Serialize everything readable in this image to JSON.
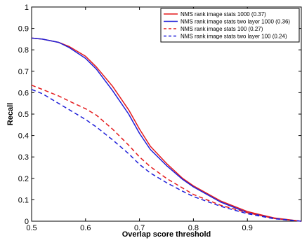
{
  "chart_data": {
    "type": "line",
    "title": "",
    "xlabel": "Overlap score threshold",
    "ylabel": "Recall",
    "xlim": [
      0.5,
      1.0
    ],
    "ylim": [
      0,
      1
    ],
    "x_ticks": [
      "0.5",
      "0.6",
      "0.7",
      "0.8",
      "0.9"
    ],
    "y_ticks": [
      "0",
      "0.1",
      "0.2",
      "0.3",
      "0.4",
      "0.5",
      "0.6",
      "0.7",
      "0.8",
      "0.9",
      "1"
    ],
    "grid": false,
    "legend_position": "top-right",
    "x": [
      0.5,
      0.52,
      0.55,
      0.57,
      0.6,
      0.62,
      0.65,
      0.68,
      0.7,
      0.72,
      0.75,
      0.78,
      0.8,
      0.85,
      0.9,
      0.95,
      1.0
    ],
    "series": [
      {
        "name": "NMS rank image stats 1000 (0.37)",
        "color": "#e41a1c",
        "dash": "solid",
        "values": [
          0.855,
          0.85,
          0.835,
          0.815,
          0.77,
          0.72,
          0.63,
          0.52,
          0.43,
          0.35,
          0.27,
          0.2,
          0.165,
          0.095,
          0.045,
          0.015,
          0.0
        ]
      },
      {
        "name": "NMS rank image stats two layer 1000 (0.36)",
        "color": "#1f1fd8",
        "dash": "solid",
        "values": [
          0.855,
          0.85,
          0.835,
          0.81,
          0.76,
          0.71,
          0.61,
          0.5,
          0.41,
          0.335,
          0.26,
          0.195,
          0.16,
          0.09,
          0.04,
          0.013,
          0.0
        ]
      },
      {
        "name": "NMS rank image stats 100 (0.27)",
        "color": "#e41a1c",
        "dash": "dashed",
        "values": [
          0.635,
          0.615,
          0.585,
          0.56,
          0.525,
          0.495,
          0.43,
          0.355,
          0.3,
          0.255,
          0.2,
          0.155,
          0.125,
          0.075,
          0.04,
          0.013,
          0.0
        ]
      },
      {
        "name": "NMS rank image stats two layer 100 (0.24)",
        "color": "#1f1fd8",
        "dash": "dashed",
        "values": [
          0.615,
          0.595,
          0.55,
          0.52,
          0.475,
          0.44,
          0.38,
          0.315,
          0.265,
          0.225,
          0.18,
          0.14,
          0.115,
          0.07,
          0.035,
          0.011,
          0.0
        ]
      }
    ]
  }
}
